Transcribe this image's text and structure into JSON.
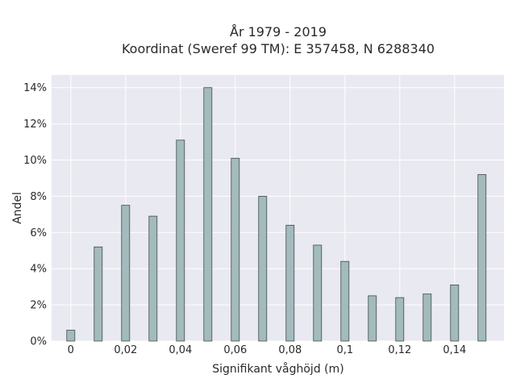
{
  "chart_data": {
    "type": "bar",
    "title_line1": "År 1979 - 2019",
    "title_line2": "Koordinat (Sweref 99 TM): E 357458, N 6288340",
    "xlabel": "Signifikant våghöjd (m)",
    "ylabel": "Andel",
    "xlim": [
      -0.007,
      0.158
    ],
    "ylim": [
      0,
      0.147
    ],
    "grid": true,
    "x": [
      0,
      0.01,
      0.02,
      0.03,
      0.04,
      0.05,
      0.06,
      0.07,
      0.08,
      0.09,
      0.1,
      0.11,
      0.12,
      0.13,
      0.14,
      0.15
    ],
    "values": [
      0.006,
      0.052,
      0.075,
      0.069,
      0.111,
      0.14,
      0.101,
      0.08,
      0.064,
      0.053,
      0.044,
      0.025,
      0.024,
      0.026,
      0.031,
      0.092
    ],
    "xticks": [
      0,
      0.02,
      0.04,
      0.06,
      0.08,
      0.1,
      0.12,
      0.14
    ],
    "xtick_labels": [
      "0",
      "0,02",
      "0,04",
      "0,06",
      "0,08",
      "0,1",
      "0,12",
      "0,14"
    ],
    "yticks": [
      0,
      0.02,
      0.04,
      0.06,
      0.08,
      0.1,
      0.12,
      0.14
    ],
    "ytick_labels": [
      "0%",
      "2%",
      "4%",
      "6%",
      "8%",
      "10%",
      "12%",
      "14%"
    ],
    "colors": {
      "bar_fill": "#a3bbbd",
      "bar_stroke": "#3e4a4a",
      "plot_bg": "#e9e9f1",
      "grid": "#ffffff"
    }
  }
}
